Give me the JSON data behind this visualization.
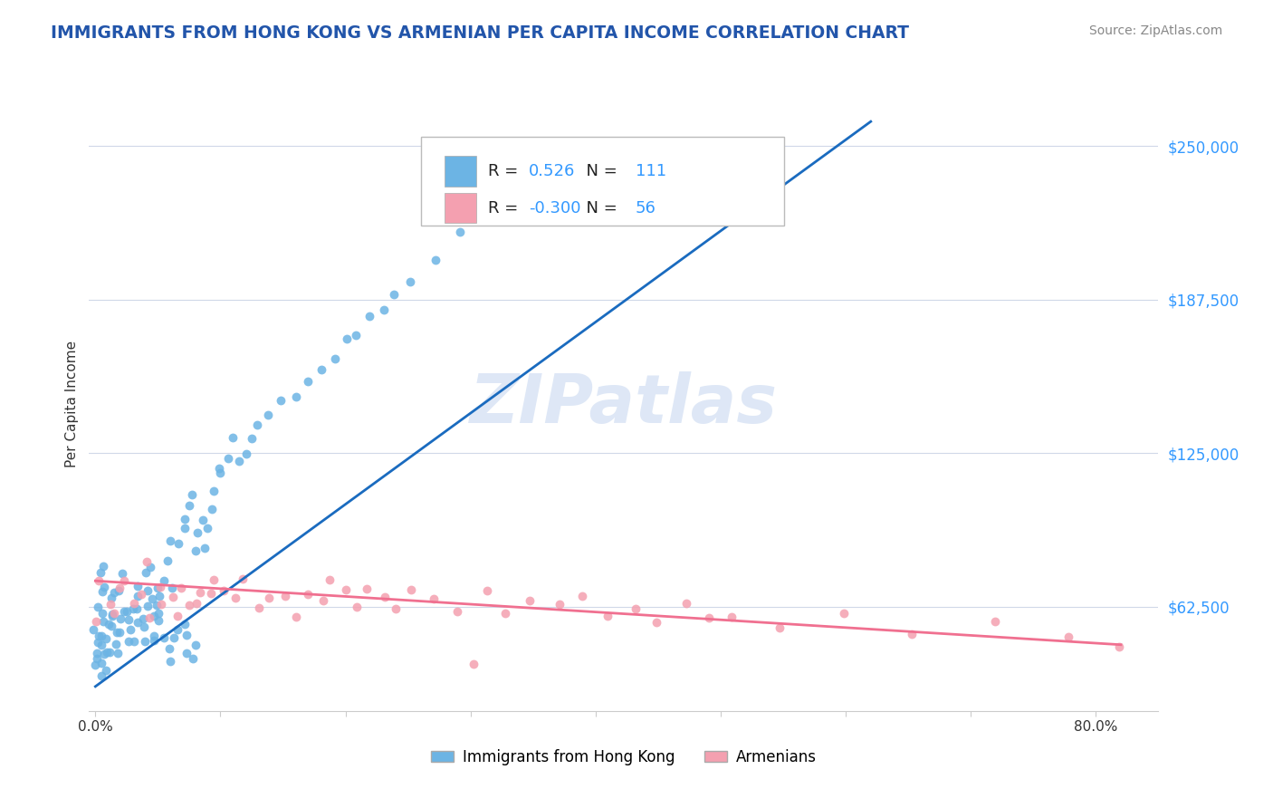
{
  "title": "IMMIGRANTS FROM HONG KONG VS ARMENIAN PER CAPITA INCOME CORRELATION CHART",
  "source": "Source: ZipAtlas.com",
  "ylabel": "Per Capita Income",
  "ytick_labels": [
    "$62,500",
    "$125,000",
    "$187,500",
    "$250,000"
  ],
  "ytick_values": [
    62500,
    125000,
    187500,
    250000
  ],
  "ylim": [
    20000,
    270000
  ],
  "xlim": [
    -0.005,
    0.85
  ],
  "legend_label1": "Immigrants from Hong Kong",
  "legend_label2": "Armenians",
  "r1": "0.526",
  "n1": "111",
  "r2": "-0.300",
  "n2": "56",
  "hk_color": "#6cb4e4",
  "arm_color": "#f4a0b0",
  "hk_line_color": "#1a6bbf",
  "arm_line_color": "#f07090",
  "watermark": "ZIPatlas",
  "background_color": "#ffffff",
  "grid_color": "#d0d8e8",
  "title_color": "#2255aa",
  "source_color": "#888888",
  "hk_scatter_x": [
    0.0,
    0.001,
    0.002,
    0.003,
    0.004,
    0.005,
    0.006,
    0.007,
    0.008,
    0.009,
    0.01,
    0.012,
    0.013,
    0.015,
    0.016,
    0.018,
    0.02,
    0.022,
    0.025,
    0.027,
    0.03,
    0.032,
    0.035,
    0.038,
    0.04,
    0.042,
    0.044,
    0.046,
    0.048,
    0.05,
    0.052,
    0.055,
    0.058,
    0.06,
    0.062,
    0.065,
    0.07,
    0.072,
    0.075,
    0.078,
    0.08,
    0.082,
    0.085,
    0.088,
    0.09,
    0.092,
    0.095,
    0.098,
    0.1,
    0.105,
    0.11,
    0.115,
    0.12,
    0.125,
    0.13,
    0.14,
    0.15,
    0.16,
    0.17,
    0.18,
    0.19,
    0.2,
    0.21,
    0.22,
    0.23,
    0.24,
    0.25,
    0.27,
    0.29,
    0.31,
    0.0,
    0.001,
    0.002,
    0.003,
    0.004,
    0.005,
    0.006,
    0.007,
    0.008,
    0.009,
    0.01,
    0.012,
    0.013,
    0.015,
    0.016,
    0.018,
    0.02,
    0.022,
    0.025,
    0.027,
    0.03,
    0.032,
    0.035,
    0.038,
    0.04,
    0.042,
    0.044,
    0.046,
    0.048,
    0.05,
    0.052,
    0.055,
    0.058,
    0.06,
    0.062,
    0.065,
    0.07,
    0.072,
    0.075,
    0.078,
    0.08
  ],
  "hk_scatter_y": [
    55000,
    48000,
    62000,
    75000,
    58000,
    52000,
    80000,
    68000,
    72000,
    45000,
    55000,
    60000,
    65000,
    58000,
    70000,
    52000,
    68000,
    74000,
    58000,
    62000,
    60000,
    65000,
    72000,
    58000,
    68000,
    75000,
    80000,
    58000,
    62000,
    70000,
    68000,
    75000,
    82000,
    88000,
    72000,
    90000,
    95000,
    100000,
    105000,
    110000,
    85000,
    92000,
    98000,
    88000,
    95000,
    102000,
    108000,
    115000,
    120000,
    125000,
    130000,
    120000,
    125000,
    130000,
    135000,
    140000,
    145000,
    150000,
    155000,
    160000,
    165000,
    170000,
    175000,
    180000,
    185000,
    190000,
    195000,
    205000,
    215000,
    225000,
    42000,
    38000,
    45000,
    52000,
    40000,
    35000,
    48000,
    55000,
    42000,
    38000,
    50000,
    45000,
    55000,
    48000,
    52000,
    42000,
    58000,
    60000,
    48000,
    52000,
    50000,
    55000,
    60000,
    48000,
    55000,
    62000,
    65000,
    48000,
    52000,
    58000,
    55000,
    50000,
    45000,
    42000,
    48000,
    52000,
    55000,
    50000,
    45000,
    42000,
    48000
  ],
  "arm_scatter_x": [
    0.0,
    0.005,
    0.01,
    0.015,
    0.02,
    0.025,
    0.03,
    0.035,
    0.04,
    0.045,
    0.05,
    0.055,
    0.06,
    0.065,
    0.07,
    0.075,
    0.08,
    0.085,
    0.09,
    0.095,
    0.1,
    0.11,
    0.12,
    0.13,
    0.14,
    0.15,
    0.16,
    0.17,
    0.18,
    0.19,
    0.2,
    0.21,
    0.22,
    0.23,
    0.24,
    0.25,
    0.27,
    0.29,
    0.31,
    0.33,
    0.35,
    0.37,
    0.39,
    0.41,
    0.43,
    0.45,
    0.47,
    0.49,
    0.51,
    0.55,
    0.6,
    0.65,
    0.72,
    0.78,
    0.82,
    0.3
  ],
  "arm_scatter_y": [
    58000,
    72000,
    65000,
    58000,
    70000,
    75000,
    62000,
    68000,
    80000,
    58000,
    72000,
    65000,
    68000,
    60000,
    72000,
    65000,
    62000,
    70000,
    68000,
    75000,
    70000,
    65000,
    72000,
    62000,
    68000,
    65000,
    60000,
    68000,
    65000,
    72000,
    68000,
    62000,
    70000,
    65000,
    60000,
    68000,
    65000,
    62000,
    70000,
    60000,
    65000,
    62000,
    68000,
    58000,
    62000,
    55000,
    65000,
    58000,
    60000,
    55000,
    58000,
    52000,
    55000,
    50000,
    48000,
    38000
  ],
  "hk_line_x": [
    0.0,
    0.62
  ],
  "hk_line_y": [
    30000,
    260000
  ],
  "arm_line_x": [
    0.0,
    0.82
  ],
  "arm_line_y": [
    73000,
    47000
  ]
}
